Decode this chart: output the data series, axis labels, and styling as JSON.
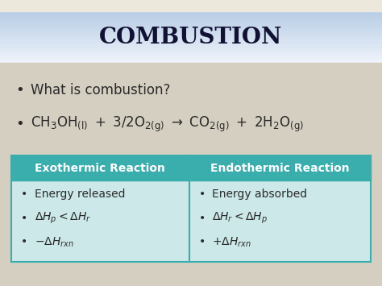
{
  "title": "COMBUSTION",
  "title_fontsize": 20,
  "slide_bg_color": "#d4cfc0",
  "title_bg_top": "#dce8f5",
  "title_bg_bottom": "#a8c0e0",
  "table_header_color": "#3aadad",
  "table_body_bg": "#cce8e8",
  "table_header_text_color": "#ffffff",
  "table_border_color": "#3aadad",
  "exo_header": "Exothermic Reaction",
  "endo_header": "Endothermic Reaction",
  "body_fontsize": 10,
  "table_header_fontsize": 10,
  "table_body_fontsize": 9,
  "text_color": "#2a2a2a",
  "title_text_color": "#111133",
  "bullet1": "What is combustion?"
}
